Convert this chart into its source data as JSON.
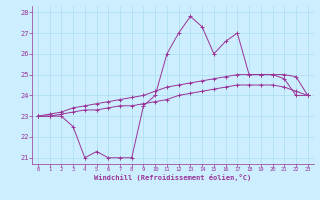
{
  "xlabel": "Windchill (Refroidissement éolien,°C)",
  "background_color": "#cceeff",
  "grid_color": "#aaddee",
  "line_color": "#993399",
  "xlim": [
    -0.5,
    23.5
  ],
  "ylim": [
    20.7,
    28.3
  ],
  "xticks": [
    0,
    1,
    2,
    3,
    4,
    5,
    6,
    7,
    8,
    9,
    10,
    11,
    12,
    13,
    14,
    15,
    16,
    17,
    18,
    19,
    20,
    21,
    22,
    23
  ],
  "yticks": [
    21,
    22,
    23,
    24,
    25,
    26,
    27,
    28
  ],
  "hours": [
    0,
    1,
    2,
    3,
    4,
    5,
    6,
    7,
    8,
    9,
    10,
    11,
    12,
    13,
    14,
    15,
    16,
    17,
    18,
    19,
    20,
    21,
    22,
    23
  ],
  "windchill": [
    23.0,
    23.0,
    23.0,
    22.5,
    21.0,
    21.3,
    21.0,
    21.0,
    21.0,
    23.5,
    24.0,
    26.0,
    27.0,
    27.8,
    27.3,
    26.0,
    26.6,
    27.0,
    25.0,
    25.0,
    25.0,
    24.8,
    24.0,
    24.0
  ],
  "temp_upper": [
    23.0,
    23.1,
    23.2,
    23.4,
    23.5,
    23.6,
    23.7,
    23.8,
    23.9,
    24.0,
    24.2,
    24.4,
    24.5,
    24.6,
    24.7,
    24.8,
    24.9,
    25.0,
    25.0,
    25.0,
    25.0,
    25.0,
    24.9,
    24.0
  ],
  "temp_lower": [
    23.0,
    23.0,
    23.1,
    23.2,
    23.3,
    23.3,
    23.4,
    23.5,
    23.5,
    23.6,
    23.7,
    23.8,
    24.0,
    24.1,
    24.2,
    24.3,
    24.4,
    24.5,
    24.5,
    24.5,
    24.5,
    24.4,
    24.2,
    24.0
  ]
}
